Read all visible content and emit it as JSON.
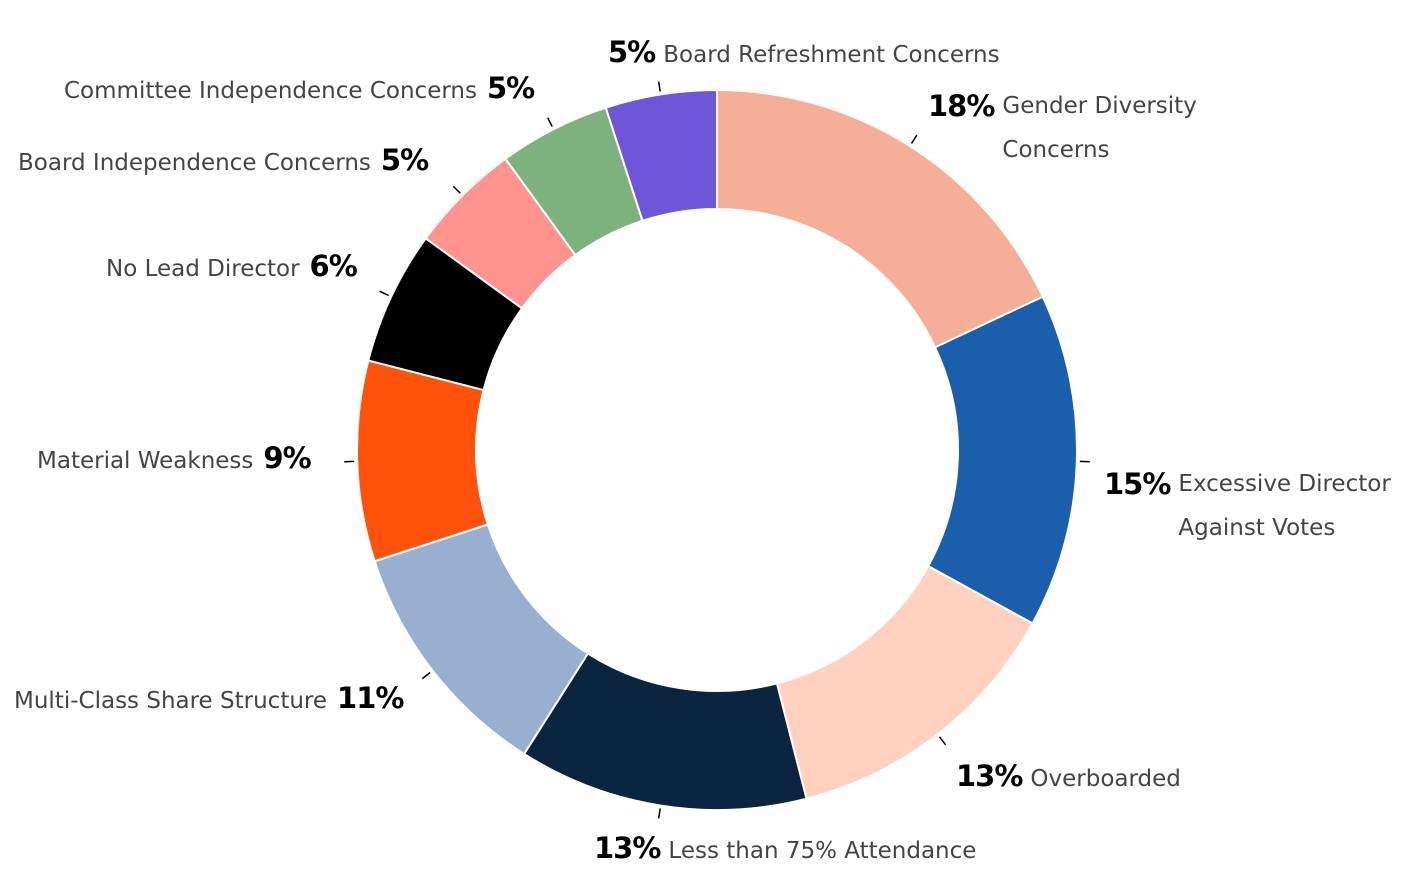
{
  "chart_data": {
    "type": "pie",
    "variant": "donut",
    "title": "",
    "categories": [
      "Gender Diversity Concerns",
      "Excessive Director Against Votes",
      "Overboarded",
      "Less than 75% Attendance",
      "Multi-Class Share Structure",
      "Material Weakness",
      "No Lead Director",
      "Board Independence Concerns",
      "Committee Independence Concerns",
      "Board Refreshment Concerns"
    ],
    "values": [
      18,
      15,
      13,
      13,
      11,
      9,
      6,
      5,
      5,
      5
    ],
    "colors": [
      "#F5AE97",
      "#1B5EAB",
      "#FFD1BE",
      "#0B2540",
      "#99AFD0",
      "#FF520D",
      "#000000",
      "#FF938F",
      "#7EB27C",
      "#6E56DB"
    ],
    "slices": [
      {
        "label": "Gender Diversity Concerns",
        "value": 18,
        "pct_label": "18%",
        "name_lines": [
          "Gender Diversity",
          "Concerns"
        ]
      },
      {
        "label": "Excessive Director Against Votes",
        "value": 15,
        "pct_label": "15%",
        "name_lines": [
          "Excessive Director",
          "Against Votes"
        ]
      },
      {
        "label": "Overboarded",
        "value": 13,
        "pct_label": "13%",
        "name_lines": [
          "Overboarded"
        ]
      },
      {
        "label": "Less than 75% Attendance",
        "value": 13,
        "pct_label": "13%",
        "name_lines": [
          "Less than 75% Attendance"
        ]
      },
      {
        "label": "Multi-Class Share Structure",
        "value": 11,
        "pct_label": "11%",
        "name_lines": [
          "Multi-Class Share Structure"
        ]
      },
      {
        "label": "Material Weakness",
        "value": 9,
        "pct_label": "9%",
        "name_lines": [
          "Material Weakness"
        ]
      },
      {
        "label": "No Lead Director",
        "value": 6,
        "pct_label": "6%",
        "name_lines": [
          "No Lead Director"
        ]
      },
      {
        "label": "Board Independence Concerns",
        "value": 5,
        "pct_label": "5%",
        "name_lines": [
          "Board Independence Concerns"
        ]
      },
      {
        "label": "Committee Independence Concerns",
        "value": 5,
        "pct_label": "5%",
        "name_lines": [
          "Committee Independence Concerns"
        ]
      },
      {
        "label": "Board Refreshment Concerns",
        "value": 5,
        "pct_label": "5%",
        "name_lines": [
          "Board Refreshment Concerns"
        ]
      }
    ]
  }
}
